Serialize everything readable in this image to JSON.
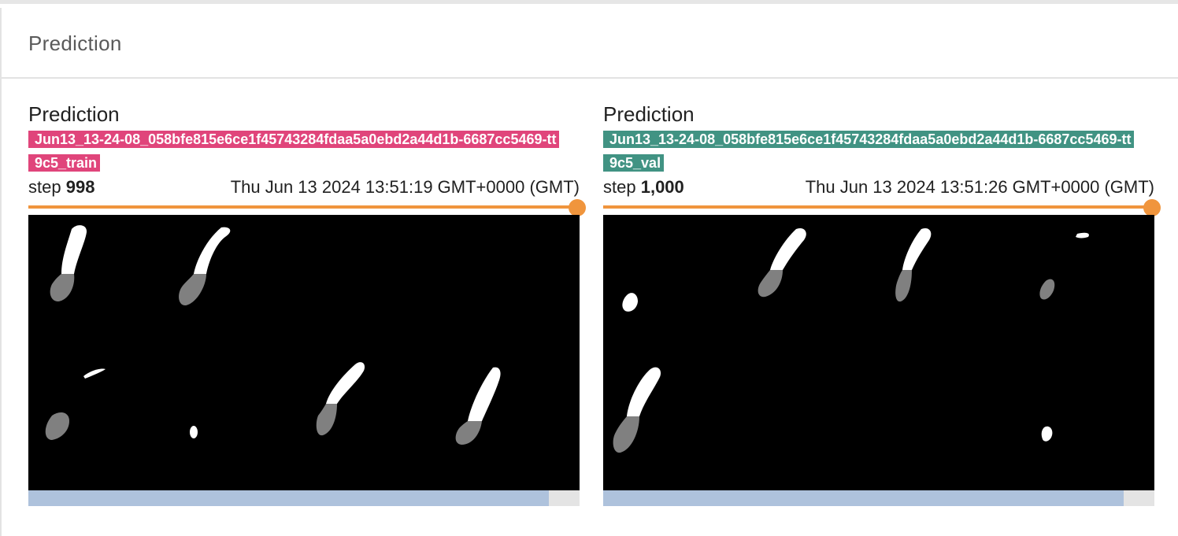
{
  "header": {
    "title": "Prediction"
  },
  "cards": [
    {
      "title": "Prediction",
      "run_name": "Jun13_13-24-08_058bfe815e6ce1f45743284fdaa5a0ebd2a44d1b-6687cc5469-tt9c5_train",
      "run_color": "#e0457b",
      "step_label": "step",
      "step_value": "998",
      "timestamp": "Thu Jun 13 2024 13:51:19 GMT+0000 (GMT)",
      "slider_position": 1.0,
      "scroll_fraction": 0.945
    },
    {
      "title": "Prediction",
      "run_name": "Jun13_13-24-08_058bfe815e6ce1f45743284fdaa5a0ebd2a44d1b-6687cc5469-tt9c5_val",
      "run_color": "#419383",
      "step_label": "step",
      "step_value": "1,000",
      "timestamp": "Thu Jun 13 2024 13:51:26 GMT+0000 (GMT)",
      "slider_position": 1.0,
      "scroll_fraction": 0.945
    }
  ]
}
